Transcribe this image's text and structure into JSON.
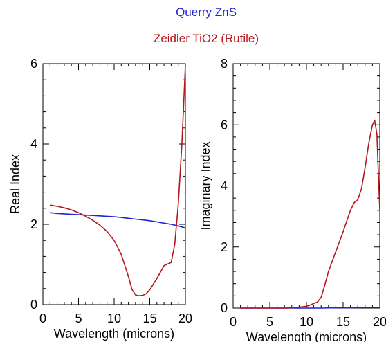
{
  "legend": [
    {
      "name": "Querry ZnS",
      "color": "#1f24d6"
    },
    {
      "name": "Zeidler TiO2 (Rutile)",
      "color": "#b3171b"
    }
  ],
  "chart_data": [
    {
      "type": "line",
      "title": "",
      "xlabel": "Wavelength (microns)",
      "ylabel": "Real Index",
      "xlim": [
        0,
        20
      ],
      "ylim": [
        0,
        6
      ],
      "xticks": [
        0,
        5,
        10,
        15,
        20
      ],
      "yticks": [
        0,
        2,
        4,
        6
      ],
      "grid": false,
      "series": [
        {
          "name": "Querry ZnS",
          "color": "#1f24d6",
          "x": [
            1,
            2,
            3,
            4,
            5,
            6,
            7,
            8,
            9,
            10,
            11,
            12,
            13,
            14,
            15,
            16,
            17,
            18,
            19,
            20
          ],
          "y": [
            2.29,
            2.27,
            2.26,
            2.25,
            2.24,
            2.23,
            2.22,
            2.21,
            2.2,
            2.19,
            2.17,
            2.15,
            2.13,
            2.11,
            2.09,
            2.06,
            2.03,
            2.0,
            1.96,
            1.91
          ]
        },
        {
          "name": "Zeidler TiO2 (Rutile)",
          "color": "#b3171b",
          "x": [
            1,
            2,
            3,
            4,
            5,
            6,
            7,
            8,
            9,
            10,
            11,
            12,
            12.5,
            13,
            13.5,
            14,
            14.5,
            15,
            16,
            17,
            18,
            18.5,
            19,
            19.5,
            20
          ],
          "y": [
            2.48,
            2.45,
            2.41,
            2.36,
            2.29,
            2.2,
            2.1,
            1.98,
            1.82,
            1.6,
            1.25,
            0.7,
            0.38,
            0.24,
            0.22,
            0.23,
            0.27,
            0.37,
            0.65,
            0.97,
            1.05,
            1.5,
            2.5,
            4.0,
            5.97
          ]
        }
      ]
    },
    {
      "type": "line",
      "title": "",
      "xlabel": "Wavelength (microns)",
      "ylabel": "Imaginary Index",
      "xlim": [
        0,
        20
      ],
      "ylim": [
        0,
        8
      ],
      "xticks": [
        0,
        5,
        10,
        15,
        20
      ],
      "yticks": [
        0,
        2,
        4,
        6,
        8
      ],
      "grid": false,
      "series": [
        {
          "name": "Querry ZnS",
          "color": "#1f24d6",
          "x": [
            1,
            5,
            10,
            12,
            14,
            16,
            18,
            20
          ],
          "y": [
            0.0,
            0.0,
            0.0,
            0.0,
            0.01,
            0.01,
            0.02,
            0.02
          ]
        },
        {
          "name": "Zeidler TiO2 (Rutile)",
          "color": "#b3171b",
          "x": [
            1,
            3,
            5,
            7,
            8,
            9,
            10,
            10.5,
            11,
            11.5,
            12,
            12.5,
            13,
            14,
            15,
            16,
            16.5,
            17,
            17.5,
            18,
            18.5,
            19,
            19.3,
            19.6,
            20
          ],
          "y": [
            0.0,
            0.0,
            0.0,
            0.0,
            0.01,
            0.03,
            0.06,
            0.1,
            0.15,
            0.2,
            0.35,
            0.75,
            1.2,
            1.85,
            2.5,
            3.2,
            3.45,
            3.55,
            3.9,
            4.6,
            5.4,
            6.0,
            6.15,
            5.7,
            3.2
          ]
        }
      ]
    }
  ]
}
